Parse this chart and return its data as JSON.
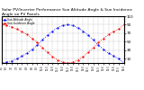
{
  "title": "Solar PV/Inverter Performance Sun Altitude Angle & Sun Incidence Angle on PV Panels",
  "title_fontsize": 3.2,
  "legend_labels": [
    "Sun Altitude Angle",
    "Sun Incidence Angle"
  ],
  "legend_colors": [
    "blue",
    "red"
  ],
  "blue_x": [
    0,
    1,
    2,
    3,
    4,
    5,
    6,
    7,
    8,
    9,
    10,
    11,
    12,
    13,
    14,
    15,
    16,
    17,
    18,
    19,
    20,
    21,
    22,
    23,
    24
  ],
  "blue_y": [
    0,
    2,
    5,
    10,
    16,
    23,
    32,
    42,
    54,
    65,
    75,
    83,
    88,
    90,
    88,
    83,
    75,
    65,
    54,
    42,
    32,
    23,
    16,
    10,
    0
  ],
  "red_x": [
    0,
    1,
    2,
    3,
    4,
    5,
    6,
    7,
    8,
    9,
    10,
    11,
    12,
    13,
    14,
    15,
    16,
    17,
    18,
    19,
    20,
    21,
    22,
    23,
    24
  ],
  "red_y": [
    90,
    88,
    85,
    80,
    74,
    67,
    58,
    48,
    36,
    25,
    15,
    7,
    2,
    0,
    2,
    7,
    15,
    25,
    36,
    48,
    58,
    67,
    74,
    80,
    90
  ],
  "xlim": [
    0,
    24
  ],
  "ylim": [
    0,
    110
  ],
  "yticks": [
    10,
    30,
    50,
    70,
    90,
    110
  ],
  "ytick_labels": [
    "10",
    "30",
    "50",
    "70",
    "90",
    "110"
  ],
  "xtick_positions": [
    0,
    1,
    2,
    3,
    4,
    5,
    6,
    7,
    8,
    9,
    10,
    11,
    12,
    13,
    14,
    15,
    16,
    17,
    18,
    19,
    20,
    21,
    22,
    23,
    24
  ],
  "xtick_labels": [
    "6:0",
    "6:3",
    "7:0",
    "7:3",
    "8:0",
    "8:3",
    "9:0",
    "9:3",
    "10:0",
    "10:3",
    "11:0",
    "11:3",
    "12:0",
    "12:3",
    "13:0",
    "13:3",
    "14:0",
    "14:3",
    "15:0",
    "15:3",
    "16:0",
    "16:3",
    "17:0",
    "17:3",
    "18:0"
  ],
  "background_color": "#ffffff",
  "grid_color": "#888888",
  "plot_bg": "#ffffff",
  "line_width": 0.6,
  "marker_size": 1.2
}
